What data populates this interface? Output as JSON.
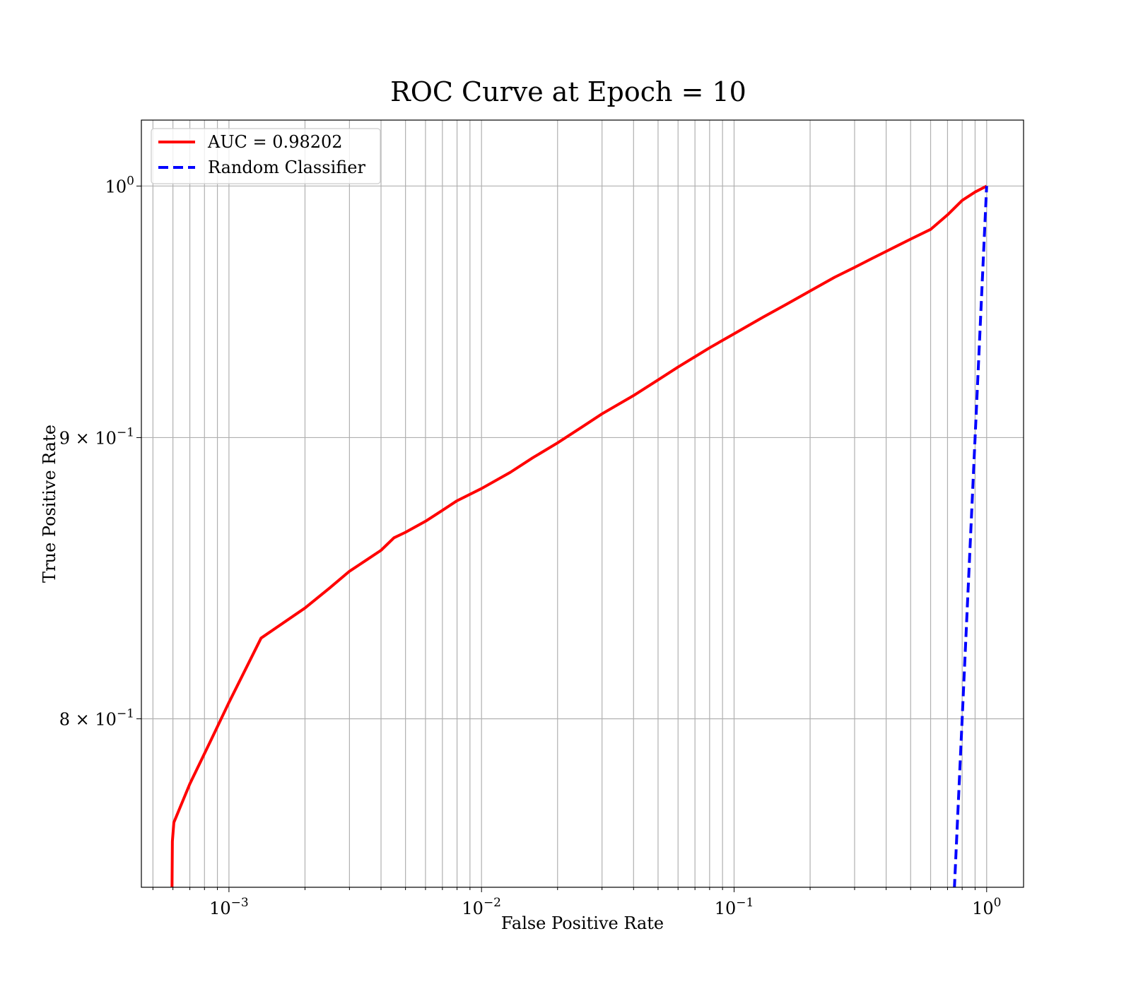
{
  "chart_data": {
    "type": "line",
    "title": "ROC Curve at Epoch = 10",
    "xlabel": "False Positive Rate",
    "ylabel": "True Positive Rate",
    "xscale": "log",
    "yscale": "log",
    "xlim": [
      0.00045,
      1.4
    ],
    "ylim": [
      0.7455,
      1.028
    ],
    "grid": true,
    "legend_position": "top-left",
    "x_ticks": [
      {
        "value": 0.001,
        "base": "10",
        "exp": "−3"
      },
      {
        "value": 0.01,
        "base": "10",
        "exp": "−2"
      },
      {
        "value": 0.1,
        "base": "10",
        "exp": "−1"
      },
      {
        "value": 1,
        "base": "10",
        "exp": "0"
      }
    ],
    "y_ticks": [
      {
        "value": 0.8,
        "base": "8 × 10",
        "exp": "−1"
      },
      {
        "value": 0.9,
        "base": "9 × 10",
        "exp": "−1"
      },
      {
        "value": 1.0,
        "base": "10",
        "exp": "0"
      }
    ],
    "series": [
      {
        "name": "AUC = 0.98202",
        "color": "#ff0000",
        "dash": "solid",
        "points": [
          [
            0.000595,
            0.745
          ],
          [
            0.000597,
            0.76
          ],
          [
            0.000605,
            0.766
          ],
          [
            0.0007,
            0.7785
          ],
          [
            0.00085,
            0.793
          ],
          [
            0.001,
            0.8055
          ],
          [
            0.00134,
            0.8275
          ],
          [
            0.002,
            0.838
          ],
          [
            0.0025,
            0.845
          ],
          [
            0.003,
            0.851
          ],
          [
            0.0035,
            0.855
          ],
          [
            0.004,
            0.8585
          ],
          [
            0.0045,
            0.863
          ],
          [
            0.005,
            0.865
          ],
          [
            0.006,
            0.869
          ],
          [
            0.007,
            0.873
          ],
          [
            0.008,
            0.8765
          ],
          [
            0.01,
            0.881
          ],
          [
            0.013,
            0.887
          ],
          [
            0.016,
            0.8925
          ],
          [
            0.02,
            0.898
          ],
          [
            0.025,
            0.904
          ],
          [
            0.03,
            0.909
          ],
          [
            0.04,
            0.916
          ],
          [
            0.05,
            0.922
          ],
          [
            0.06,
            0.927
          ],
          [
            0.07,
            0.931
          ],
          [
            0.08,
            0.9345
          ],
          [
            0.1,
            0.94
          ],
          [
            0.13,
            0.9465
          ],
          [
            0.16,
            0.9515
          ],
          [
            0.2,
            0.957
          ],
          [
            0.25,
            0.9625
          ],
          [
            0.3,
            0.9665
          ],
          [
            0.35,
            0.97
          ],
          [
            0.4,
            0.973
          ],
          [
            0.5,
            0.978
          ],
          [
            0.6,
            0.982
          ],
          [
            0.7,
            0.988
          ],
          [
            0.8,
            0.994
          ],
          [
            0.9,
            0.9975
          ],
          [
            1.0,
            1.0
          ]
        ]
      },
      {
        "name": "Random Classifier",
        "color": "#0000ff",
        "dash": "dashed",
        "points": [
          [
            0.745,
            0.745
          ],
          [
            0.8,
            0.8
          ],
          [
            0.9,
            0.9
          ],
          [
            1.0,
            1.0
          ]
        ]
      }
    ]
  }
}
